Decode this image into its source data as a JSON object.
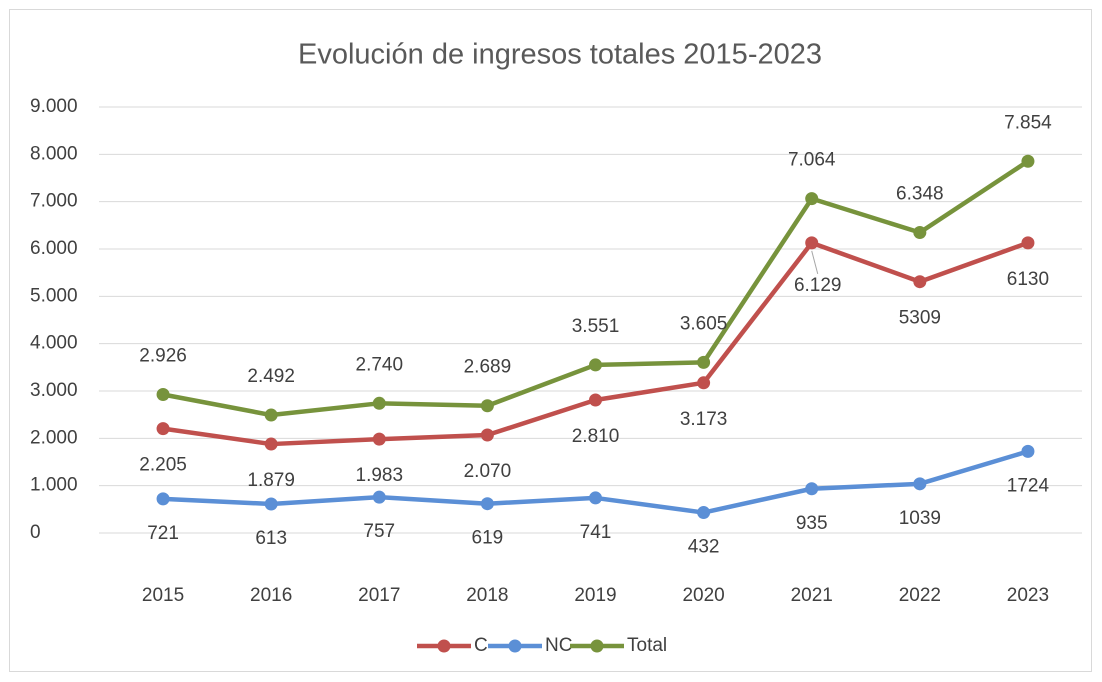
{
  "chart_data": {
    "type": "line",
    "title": "Evolución de ingresos totales 2015-2023",
    "categories": [
      "2015",
      "2016",
      "2017",
      "2018",
      "2019",
      "2020",
      "2021",
      "2022",
      "2023"
    ],
    "series": [
      {
        "name": "C",
        "color": "#c0504d",
        "values": [
          2205,
          1879,
          1983,
          2070,
          2810,
          3173,
          6129,
          5309,
          6130
        ],
        "value_labels": [
          "2.205",
          "1.879",
          "1.983",
          "2.070",
          "2.810",
          "3.173",
          "6.129",
          "5309",
          "6130"
        ]
      },
      {
        "name": "NC",
        "color": "#5b8fd6",
        "values": [
          721,
          613,
          757,
          619,
          741,
          432,
          935,
          1039,
          1724
        ],
        "value_labels": [
          "721",
          "613",
          "757",
          "619",
          "741",
          "432",
          "935",
          "1039",
          "1724"
        ]
      },
      {
        "name": "Total",
        "color": "#77933c",
        "values": [
          2926,
          2492,
          2740,
          2689,
          3551,
          3605,
          7064,
          6348,
          7854
        ],
        "value_labels": [
          "2.926",
          "2.492",
          "2.740",
          "2.689",
          "3.551",
          "3.605",
          "7.064",
          "6.348",
          "7.854"
        ]
      }
    ],
    "ylim": [
      0,
      9000
    ],
    "yticks": [
      0,
      {
        "value": 1000,
        "label": "1.000"
      },
      {
        "value": 2000,
        "label": "2.000"
      },
      {
        "value": 3000,
        "label": "3.000"
      },
      {
        "value": 4000,
        "label": "4.000"
      },
      {
        "value": 5000,
        "label": "5.000"
      },
      {
        "value": 6000,
        "label": "6.000"
      },
      {
        "value": 7000,
        "label": "7.000"
      },
      {
        "value": 8000,
        "label": "8.000"
      },
      {
        "value": 9000,
        "label": "9.000"
      }
    ],
    "grid": true,
    "legend": "bottom"
  }
}
